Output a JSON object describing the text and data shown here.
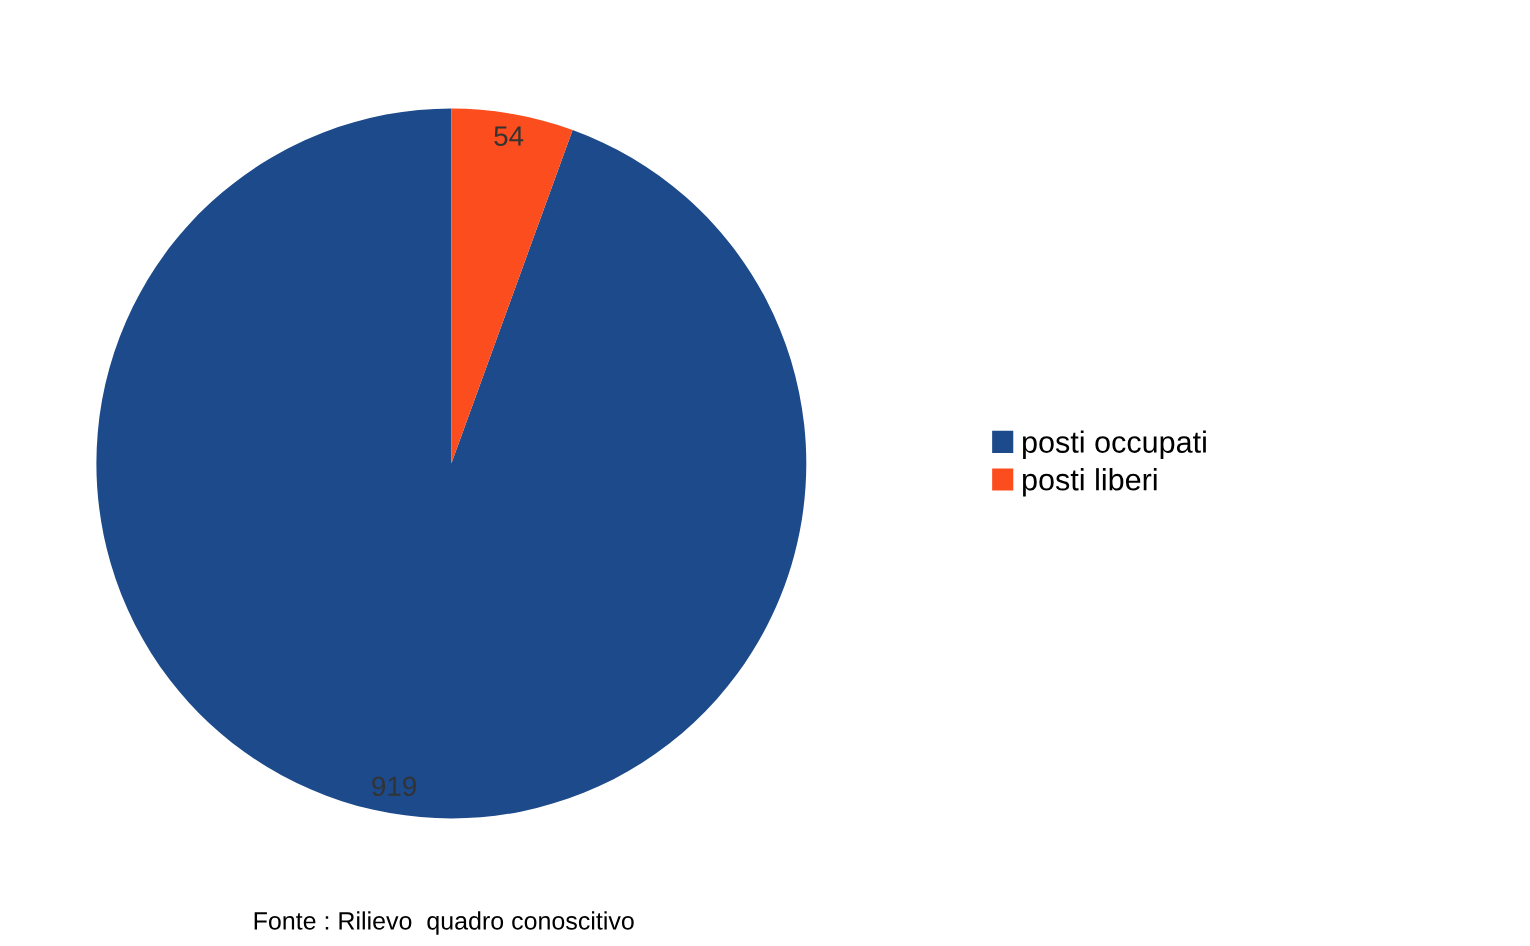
{
  "chart_data": {
    "type": "pie",
    "categories": [
      "posti occupati",
      "posti liberi"
    ],
    "values": [
      919,
      54
    ],
    "colors": [
      "#1d4a8a",
      "#fb4d1d"
    ],
    "data_labels": true,
    "legend": "right",
    "annotations": [
      "Fonte : Rilievo  quadro conoscitivo"
    ]
  }
}
